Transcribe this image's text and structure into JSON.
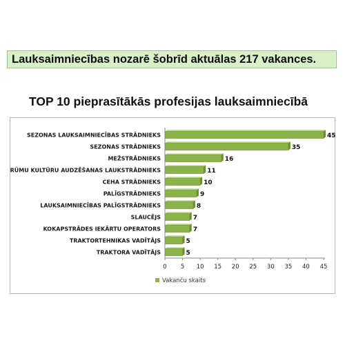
{
  "banner": {
    "text": "Lauksaimniecības nozarē šobrīd aktuālas 217 vakances."
  },
  "colors": {
    "bar": "#8ab44a",
    "bar_stroke": "#6a8f34",
    "banner_bg": "#d8f0c8"
  },
  "chart_data": {
    "type": "bar",
    "orientation": "horizontal",
    "title": "TOP 10 pieprasītākās profesijas lauksaimniecībā",
    "categories": [
      "SEZONAS LAUKSAIMNIECĪBAS STRĀDNIEKS",
      "SEZONAS STRĀDNIEKS",
      "MEŽSTRĀDNIEKS",
      "KRŪMU KULTŪRU AUDZĒŠANAS LAUKSTRĀDNIEKS",
      "CEHA STRĀDNIEKS",
      "PALĪGSTRĀDNIEKS",
      "LAUKSAIMNIECĪBAS PALĪGSTRĀDNIEKS",
      "SLAUCĒJS",
      "KOKAPSTRĀDES IEKĀRTU OPERATORS",
      "TRAKTORTEHNIKAS VADĪTĀJS",
      "TRAKTORA VADĪTĀJS"
    ],
    "series": [
      {
        "name": "Vakanču skaits",
        "values": [
          45,
          35,
          16,
          11,
          10,
          9,
          8,
          7,
          7,
          5,
          5
        ]
      }
    ],
    "xlim": [
      0,
      45
    ],
    "xticks": [
      0,
      5,
      10,
      15,
      20,
      25,
      30,
      35,
      40,
      45
    ],
    "grid": false,
    "legend": "bottom",
    "data_labels": true
  }
}
